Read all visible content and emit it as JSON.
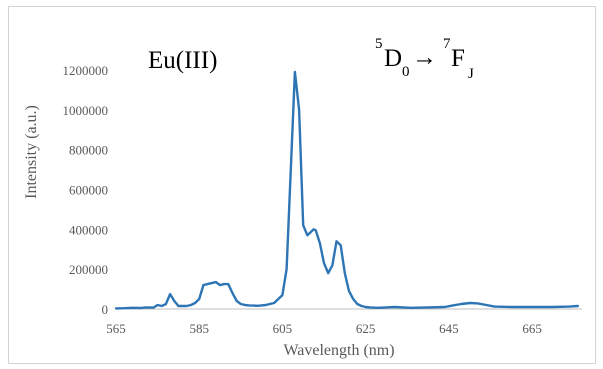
{
  "chart_data": {
    "type": "line",
    "title": "",
    "xlabel": "Wavelength (nm)",
    "ylabel": "Intensity (a.u.)",
    "xlim": [
      565,
      677
    ],
    "ylim": [
      0,
      1300000
    ],
    "x_ticks": [
      565,
      585,
      605,
      625,
      645,
      665
    ],
    "x_tick_labels": [
      "565",
      "585",
      "605",
      "625",
      "645",
      "665"
    ],
    "y_ticks": [
      0,
      200000,
      400000,
      600000,
      800000,
      1000000,
      1200000
    ],
    "y_tick_labels": [
      "0",
      "200000",
      "400000",
      "600000",
      "800000",
      "1000000",
      "1200000"
    ],
    "grid": false,
    "line_color": "#2e75b6",
    "annotations": {
      "species": "Eu(III)",
      "transition": {
        "upper_superscript": "5",
        "upper_letter": "D",
        "upper_subscript": "0",
        "arrow": "→",
        "lower_superscript": "7",
        "lower_letter": "F",
        "lower_subscript": "J"
      }
    },
    "series": [
      {
        "x": [
          565,
          567,
          569,
          571,
          572,
          574,
          575,
          576,
          577,
          578,
          579,
          580,
          582,
          583,
          584,
          585,
          586,
          587,
          588,
          589,
          590,
          591,
          592,
          593,
          594,
          595,
          596,
          597,
          598,
          599,
          600,
          601,
          602,
          603,
          604,
          605,
          606,
          607,
          608,
          609,
          610,
          611,
          612,
          612.5,
          613,
          614,
          615,
          616,
          617,
          618,
          619,
          620,
          621,
          622,
          623,
          624,
          625,
          626,
          628,
          630,
          632,
          634,
          636,
          640,
          644,
          646,
          648,
          650,
          652,
          654,
          656,
          660,
          665,
          670,
          674,
          676
        ],
        "y": [
          3000,
          4000,
          6000,
          5000,
          8000,
          7000,
          20000,
          15000,
          25000,
          75000,
          40000,
          15000,
          15000,
          20000,
          30000,
          50000,
          120000,
          125000,
          130000,
          135000,
          120000,
          125000,
          125000,
          80000,
          40000,
          25000,
          20000,
          18000,
          17000,
          16000,
          18000,
          20000,
          25000,
          30000,
          50000,
          70000,
          200000,
          700000,
          1190000,
          1000000,
          420000,
          370000,
          390000,
          400000,
          395000,
          330000,
          230000,
          180000,
          220000,
          340000,
          320000,
          180000,
          90000,
          50000,
          25000,
          15000,
          10000,
          8000,
          6000,
          8000,
          10000,
          8000,
          6000,
          8000,
          10000,
          18000,
          25000,
          30000,
          28000,
          20000,
          12000,
          10000,
          10000,
          10000,
          12000,
          15000
        ]
      }
    ]
  }
}
